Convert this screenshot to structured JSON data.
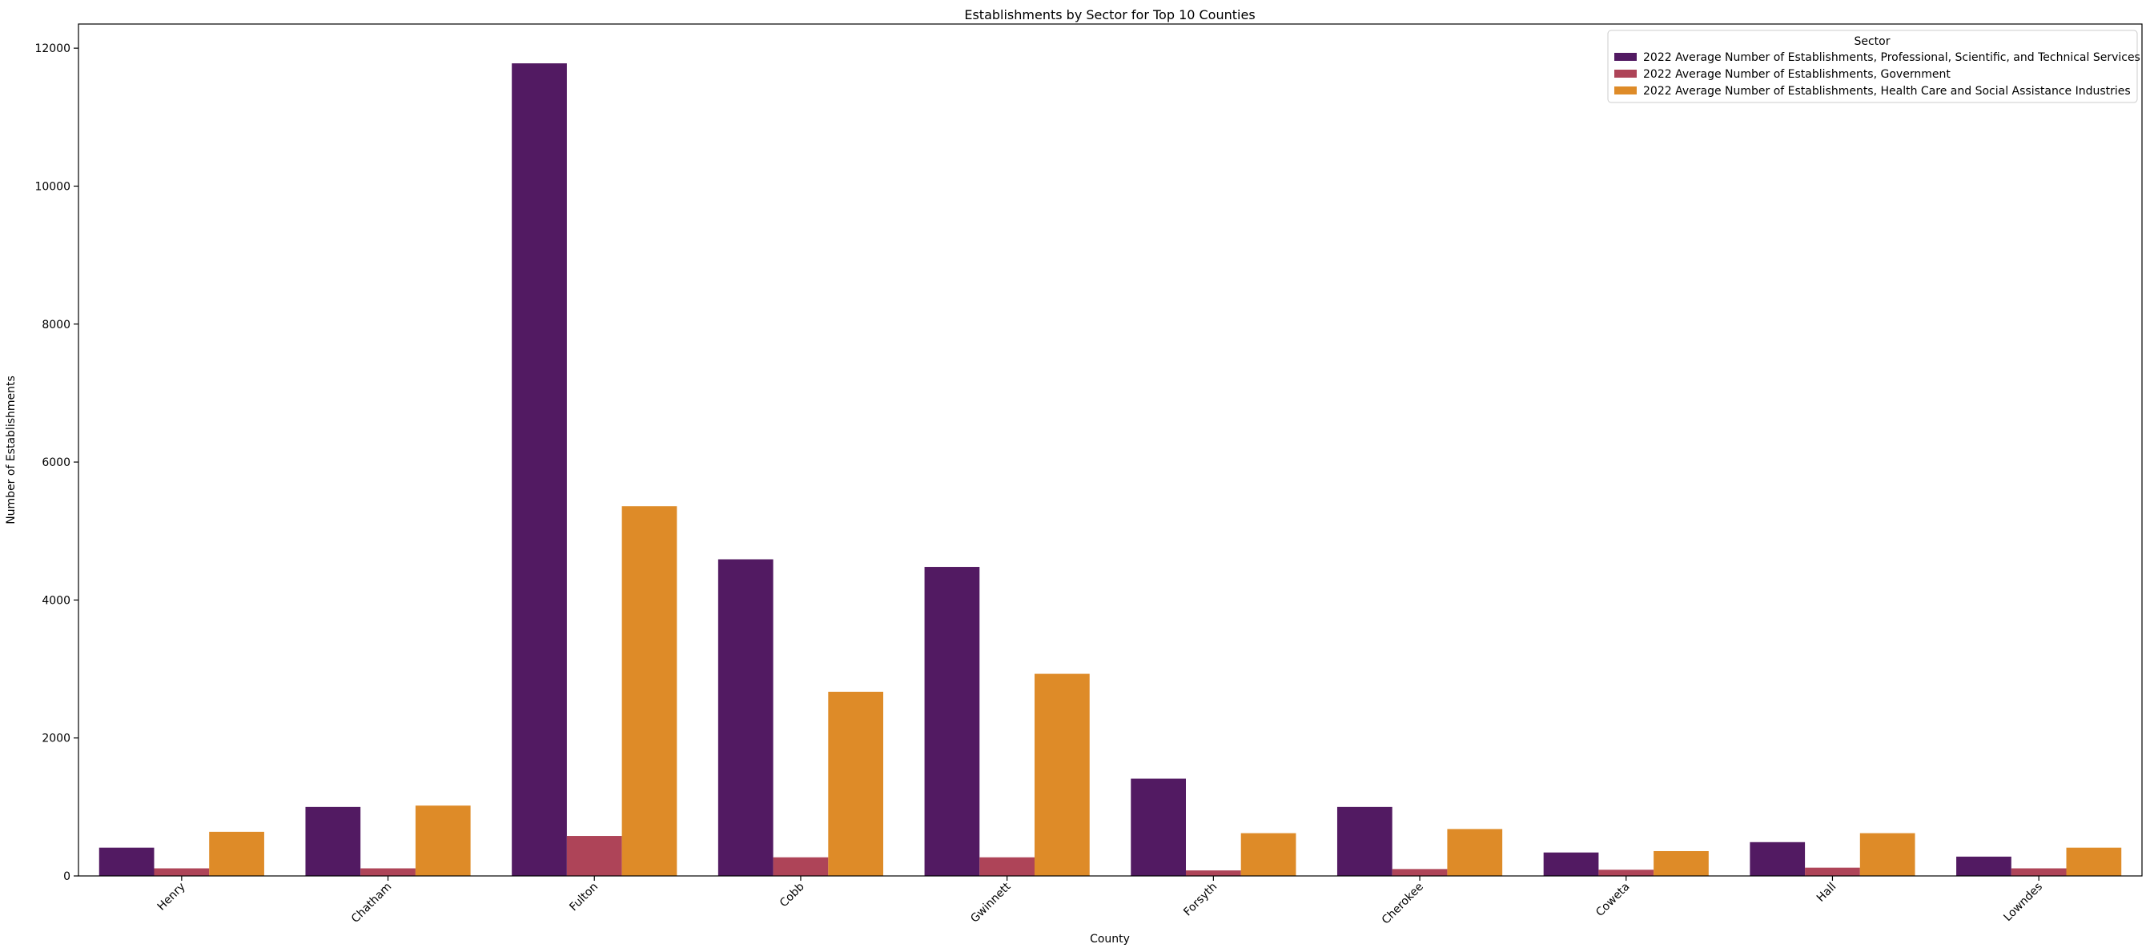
{
  "chart_data": {
    "type": "bar",
    "title": "Establishments by Sector for Top 10 Counties",
    "xlabel": "County",
    "ylabel": "Number of Establishments",
    "ylim": [
      0,
      12350
    ],
    "yticks": [
      0,
      2000,
      4000,
      6000,
      8000,
      10000,
      12000
    ],
    "grid": false,
    "legend_title": "Sector",
    "legend_position": "top-right",
    "categories": [
      "Henry",
      "Chatham",
      "Fulton",
      "Cobb",
      "Gwinnett",
      "Forsyth",
      "Cherokee",
      "Coweta",
      "Hall",
      "Lowndes"
    ],
    "series": [
      {
        "name": "2022 Average Number of Establishments, Professional, Scientific, and Technical Services",
        "color": "#521a62",
        "values": [
          410,
          1000,
          11780,
          4590,
          4480,
          1410,
          1000,
          340,
          490,
          280
        ]
      },
      {
        "name": "2022 Average Number of Establishments, Government",
        "color": "#ae4458",
        "values": [
          110,
          110,
          580,
          270,
          270,
          80,
          100,
          90,
          120,
          110
        ]
      },
      {
        "name": "2022 Average Number of Establishments, Health Care and Social Assistance Industries",
        "color": "#de8b28",
        "values": [
          640,
          1020,
          5360,
          2670,
          2930,
          620,
          680,
          360,
          620,
          410
        ]
      }
    ]
  }
}
